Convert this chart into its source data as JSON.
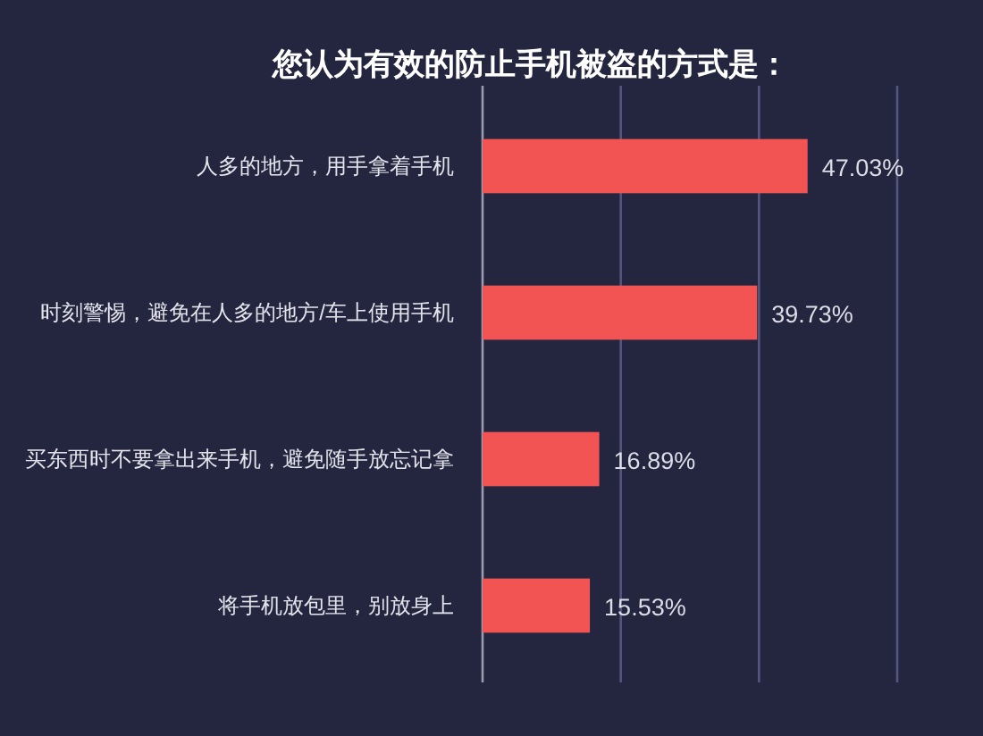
{
  "chart_data": {
    "type": "bar",
    "orientation": "horizontal",
    "title": "您认为有效的防止手机被盗的方式是：",
    "categories": [
      "人多的地方，用手拿着手机",
      "时刻警惕，避免在人多的地方/车上使用手机",
      "买东西时不要拿出来手机，避免随手放忘记拿",
      "将手机放包里，别放身上"
    ],
    "values": [
      47.03,
      39.73,
      16.89,
      15.53
    ],
    "value_labels": [
      "47.03%",
      "39.73%",
      "16.89%",
      "15.53%"
    ],
    "color": "#f25454",
    "xlim": [
      0,
      60
    ],
    "xticks": [
      {
        "value": 0,
        "label": null
      },
      {
        "value": 20,
        "label": null
      },
      {
        "value": 40,
        "label": null
      },
      {
        "value": 60,
        "label": null
      }
    ],
    "grid": "x",
    "tick_labels": "y"
  }
}
